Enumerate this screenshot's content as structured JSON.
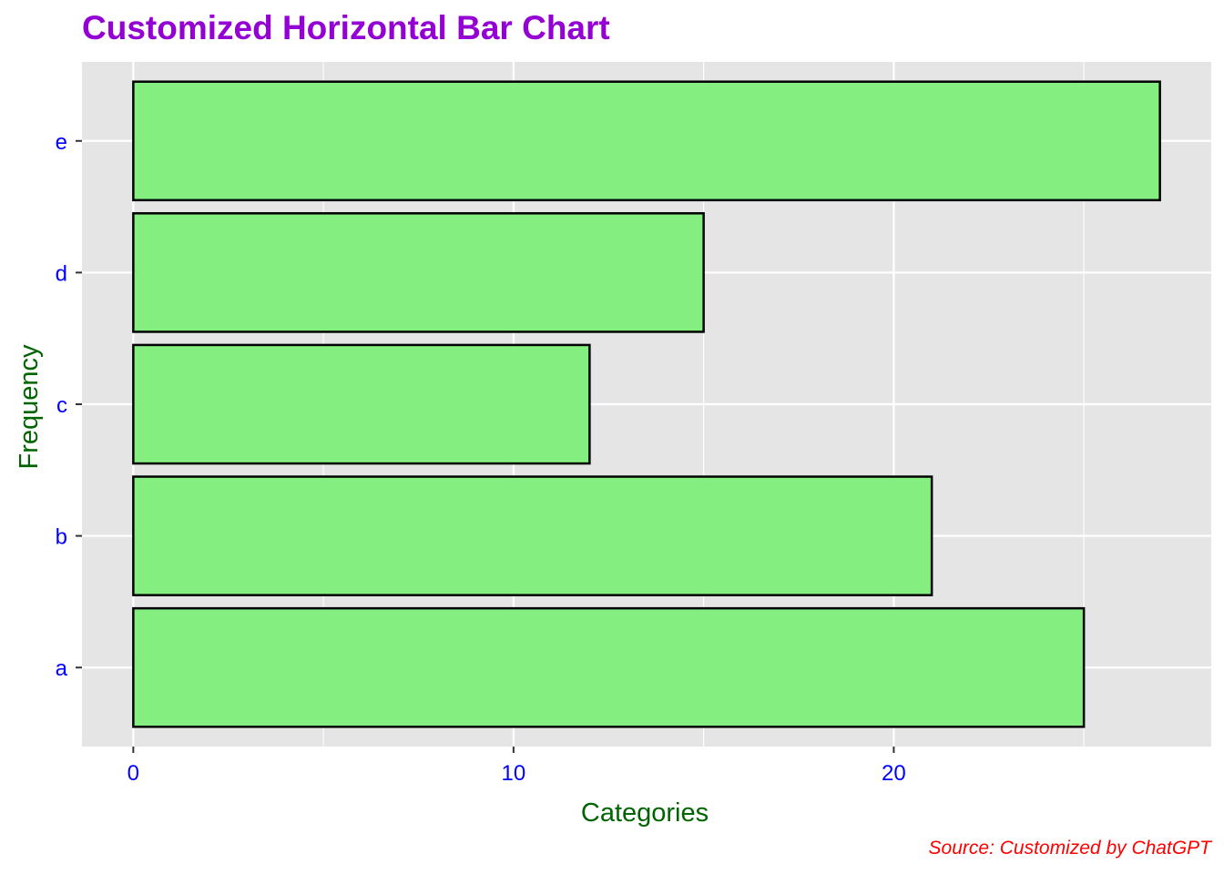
{
  "chart_data": {
    "type": "bar",
    "orientation": "horizontal",
    "title": "Customized Horizontal Bar Chart",
    "xlabel": "Categories",
    "ylabel": "Frequency",
    "caption": "Source: Customized by ChatGPT",
    "categories": [
      "a",
      "b",
      "c",
      "d",
      "e"
    ],
    "values": [
      25,
      21,
      12,
      15,
      27
    ],
    "xlim": [
      -1.35,
      28.35
    ],
    "xticks": [
      0,
      10,
      20
    ],
    "grid": true,
    "legend": "none"
  },
  "colors": {
    "title": "#9400D3",
    "axis_title": "#006400",
    "tick_label": "#0000FF",
    "caption": "#FF0000",
    "panel_background": "#E5E5E5",
    "grid": "#FFFFFF",
    "bar_fill": "#84EE80",
    "bar_border": "#000000"
  }
}
